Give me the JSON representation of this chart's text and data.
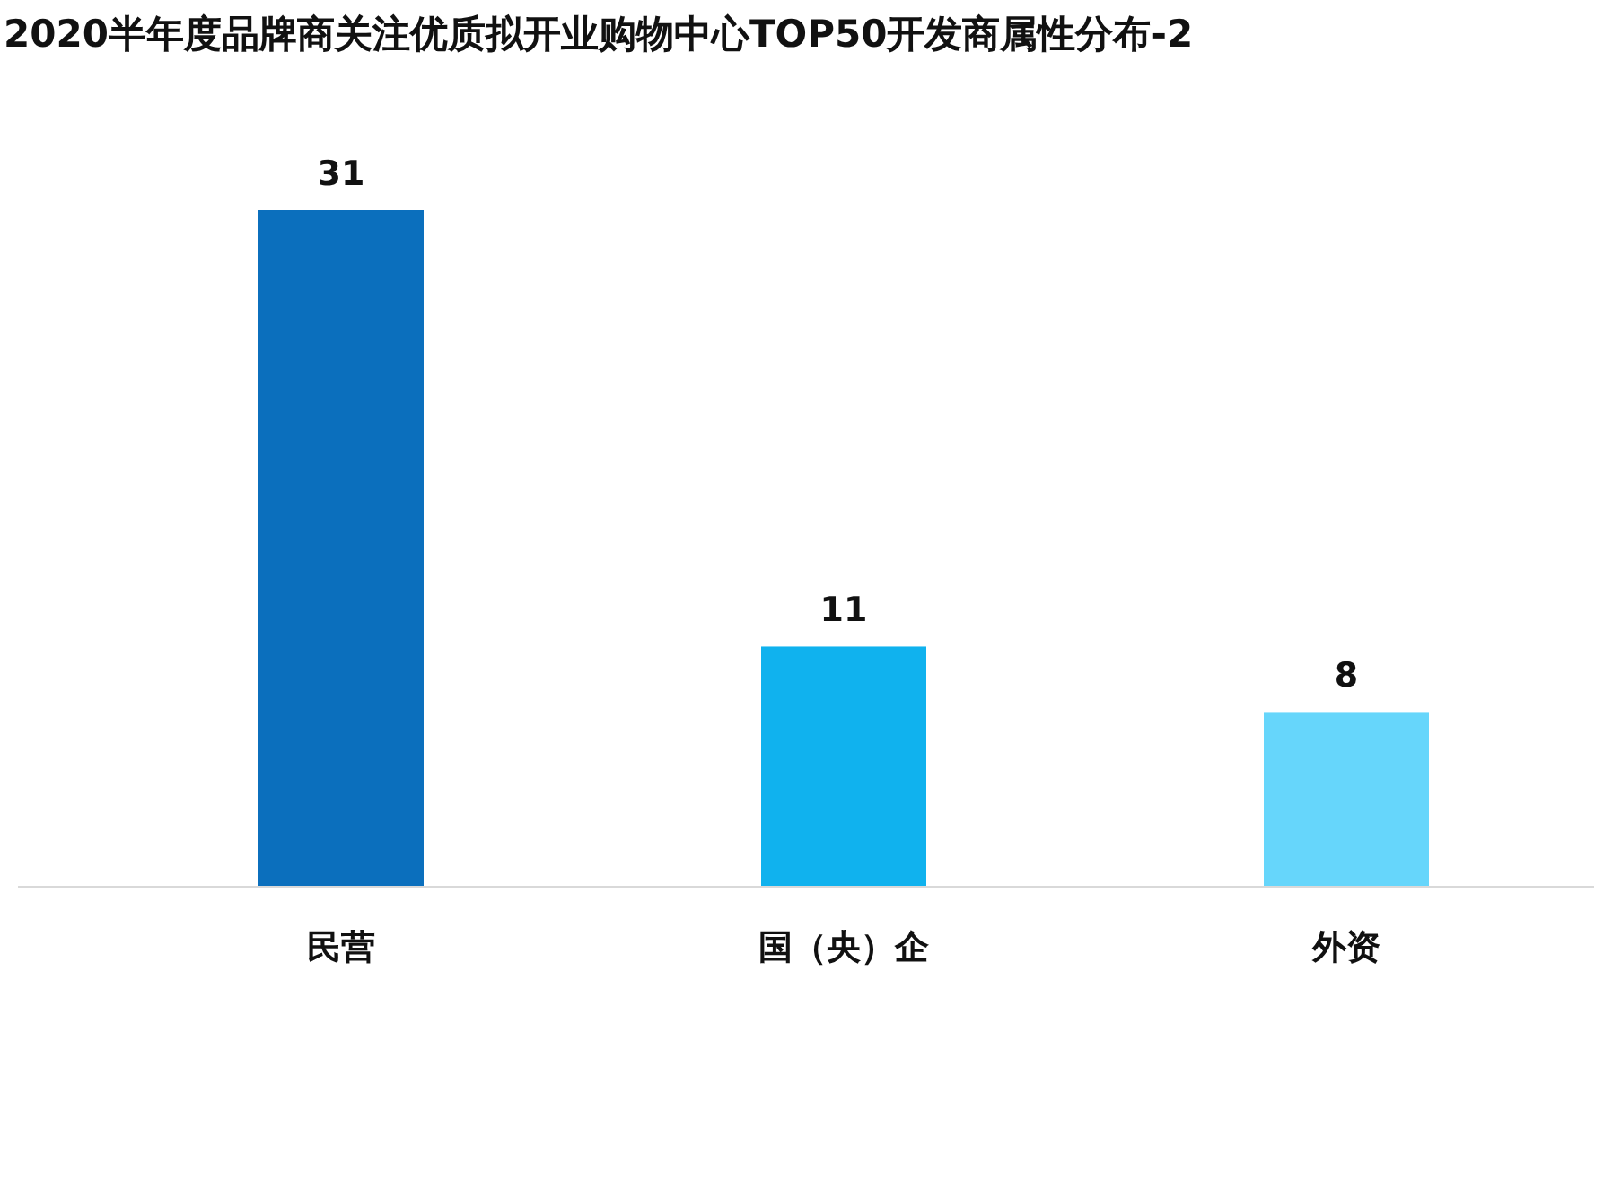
{
  "chart_data": {
    "type": "bar",
    "title": "2020半年度品牌商关注优质拟开业购物中心TOP50开发商属性分布-2",
    "categories": [
      "民营",
      "国（央）企",
      "外资"
    ],
    "values": [
      31,
      11,
      8
    ],
    "colors": [
      "#0b6fbd",
      "#10b2ee",
      "#66d6fb"
    ],
    "data_labels": true
  }
}
